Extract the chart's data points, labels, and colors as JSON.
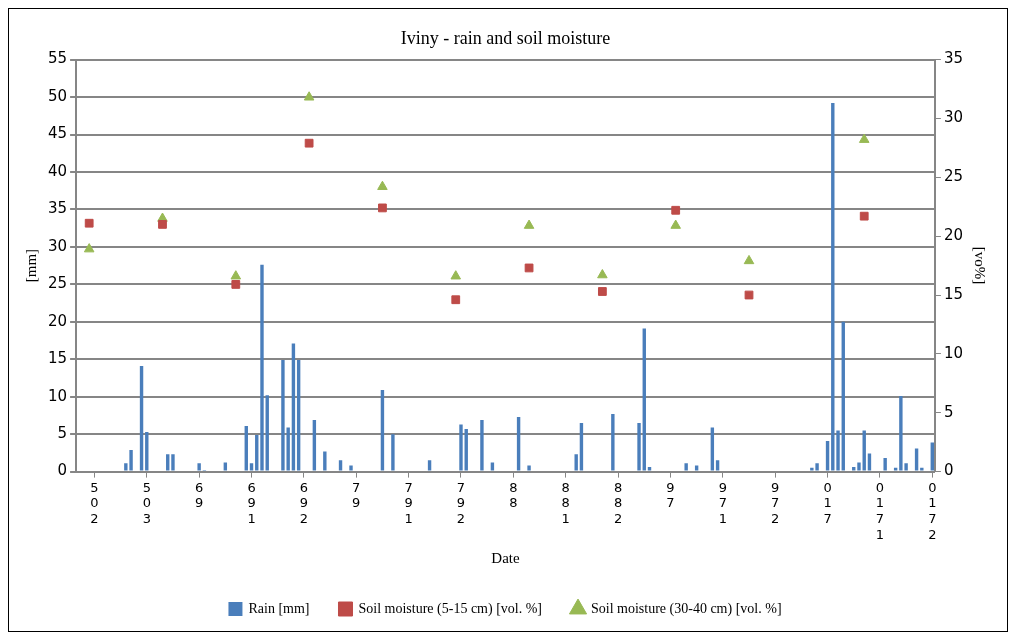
{
  "chart_data": {
    "type": "bar",
    "title": "Iviny - rain and soil moisture",
    "xlabel": "Date",
    "ylabel": "[mm]",
    "y2label": "[vo%]",
    "categories": [
      null,
      null,
      null,
      "502",
      null,
      null,
      null,
      null,
      null,
      null,
      null,
      null,
      null,
      "503",
      null,
      null,
      null,
      null,
      null,
      null,
      null,
      null,
      null,
      "69",
      null,
      null,
      null,
      null,
      null,
      null,
      null,
      null,
      null,
      "691",
      null,
      null,
      null,
      null,
      null,
      null,
      null,
      null,
      null,
      "692",
      null,
      null,
      null,
      null,
      null,
      null,
      null,
      null,
      null,
      "79",
      null,
      null,
      null,
      null,
      null,
      null,
      null,
      null,
      null,
      "791",
      null,
      null,
      null,
      null,
      null,
      null,
      null,
      null,
      null,
      "792",
      null,
      null,
      null,
      null,
      null,
      null,
      null,
      null,
      null,
      "88",
      null,
      null,
      null,
      null,
      null,
      null,
      null,
      null,
      null,
      "881",
      null,
      null,
      null,
      null,
      null,
      null,
      null,
      null,
      null,
      "882",
      null,
      null,
      null,
      null,
      null,
      null,
      null,
      null,
      null,
      "97",
      null,
      null,
      null,
      null,
      null,
      null,
      null,
      null,
      null,
      "971",
      null,
      null,
      null,
      null,
      null,
      null,
      null,
      null,
      null,
      "972",
      null,
      null,
      null,
      null,
      null,
      null,
      null,
      null,
      null,
      "017",
      null,
      null,
      null,
      null,
      null,
      null,
      null,
      null,
      null,
      "0171",
      null,
      null,
      null,
      null,
      null,
      null,
      null,
      null,
      null,
      "0172"
    ],
    "ylim": [
      0,
      55
    ],
    "yticks": [
      0,
      5,
      10,
      15,
      20,
      25,
      30,
      35,
      40,
      45,
      50,
      55
    ],
    "y2lim": [
      0,
      35
    ],
    "y2ticks": [
      0,
      5,
      10,
      15,
      20,
      25,
      30,
      35
    ],
    "grid": "y",
    "legend": "bottom",
    "series": [
      {
        "name": "Rain [mm]",
        "color": "#4a7ebb",
        "values": [
          null,
          null,
          null,
          null,
          null,
          null,
          null,
          null,
          null,
          1.1,
          2.9,
          null,
          14.1,
          5.3,
          null,
          null,
          null,
          2.3,
          2.3,
          null,
          null,
          null,
          null,
          1.1,
          0.2,
          null,
          null,
          null,
          1.2,
          null,
          null,
          null,
          6.1,
          1.1,
          4.9,
          27.6,
          10.2,
          null,
          null,
          14.9,
          5.9,
          17.1,
          14.9,
          null,
          null,
          6.9,
          null,
          2.7,
          null,
          null,
          1.5,
          null,
          0.8,
          null,
          null,
          null,
          null,
          null,
          10.9,
          null,
          5.0,
          null,
          null,
          null,
          null,
          null,
          null,
          1.5,
          null,
          null,
          null,
          null,
          null,
          6.3,
          5.7,
          null,
          null,
          6.9,
          null,
          1.2,
          null,
          null,
          null,
          null,
          7.3,
          null,
          0.8,
          null,
          null,
          null,
          null,
          null,
          null,
          null,
          null,
          2.3,
          6.5,
          null,
          null,
          null,
          null,
          null,
          7.7,
          null,
          null,
          null,
          null,
          6.5,
          19.1,
          0.6,
          null,
          null,
          null,
          null,
          null,
          null,
          1.1,
          null,
          0.8,
          null,
          null,
          5.9,
          1.5,
          null,
          null,
          null,
          null,
          null,
          null,
          null,
          null,
          null,
          null,
          null,
          null,
          null,
          null,
          null,
          null,
          null,
          0.5,
          1.1,
          null,
          4.1,
          49.2,
          5.5,
          20.0,
          null,
          0.6,
          1.2,
          5.5,
          2.4,
          null,
          null,
          1.8,
          null,
          0.5,
          10.1,
          1.1,
          null,
          3.1,
          0.5,
          null,
          3.9
        ]
      },
      {
        "name": "Soil moisture (5-15 cm) [vol. %]",
        "type": "scatter",
        "axis": "y2",
        "marker": "square",
        "color": "#be4b48",
        "values": [
          null,
          null,
          21.1,
          null,
          null,
          null,
          null,
          null,
          null,
          null,
          null,
          null,
          null,
          null,
          null,
          null,
          21.0,
          null,
          null,
          null,
          null,
          null,
          null,
          null,
          null,
          null,
          null,
          null,
          null,
          null,
          15.9,
          null,
          null,
          null,
          null,
          null,
          null,
          null,
          null,
          null,
          null,
          null,
          null,
          null,
          27.9,
          null,
          null,
          null,
          null,
          null,
          null,
          null,
          null,
          null,
          null,
          null,
          null,
          null,
          22.4,
          null,
          null,
          null,
          null,
          null,
          null,
          null,
          null,
          null,
          null,
          null,
          null,
          null,
          14.6,
          null,
          null,
          null,
          null,
          null,
          null,
          null,
          null,
          null,
          null,
          null,
          null,
          null,
          17.3,
          null,
          null,
          null,
          null,
          null,
          null,
          null,
          null,
          null,
          null,
          null,
          null,
          null,
          15.3,
          null,
          null,
          null,
          null,
          null,
          null,
          null,
          null,
          null,
          null,
          null,
          null,
          null,
          22.2,
          null,
          null,
          null,
          null,
          null,
          null,
          null,
          null,
          null,
          null,
          null,
          null,
          null,
          15.0,
          null,
          null,
          null,
          null,
          null,
          null,
          null,
          null,
          null,
          null,
          null,
          null,
          null,
          null,
          null,
          null,
          null,
          null,
          null,
          null,
          null,
          21.7,
          null,
          null,
          null,
          null,
          null,
          null,
          null,
          null,
          null,
          null,
          null,
          null,
          null
        ]
      },
      {
        "name": "Soil moisture (30-40 cm) [vol. %]",
        "type": "scatter",
        "axis": "y2",
        "marker": "triangle",
        "color": "#98b954",
        "values": [
          null,
          null,
          18.9,
          null,
          null,
          null,
          null,
          null,
          null,
          null,
          null,
          null,
          null,
          null,
          null,
          null,
          21.5,
          null,
          null,
          null,
          null,
          null,
          null,
          null,
          null,
          null,
          null,
          null,
          null,
          null,
          16.6,
          null,
          null,
          null,
          null,
          null,
          null,
          null,
          null,
          null,
          null,
          null,
          null,
          null,
          31.8,
          null,
          null,
          null,
          null,
          null,
          null,
          null,
          null,
          null,
          null,
          null,
          null,
          null,
          24.2,
          null,
          null,
          null,
          null,
          null,
          null,
          null,
          null,
          null,
          null,
          null,
          null,
          null,
          16.6,
          null,
          null,
          null,
          null,
          null,
          null,
          null,
          null,
          null,
          null,
          null,
          null,
          null,
          20.9,
          null,
          null,
          null,
          null,
          null,
          null,
          null,
          null,
          null,
          null,
          null,
          null,
          null,
          16.7,
          null,
          null,
          null,
          null,
          null,
          null,
          null,
          null,
          null,
          null,
          null,
          null,
          null,
          20.9,
          null,
          null,
          null,
          null,
          null,
          null,
          null,
          null,
          null,
          null,
          null,
          null,
          null,
          17.9,
          null,
          null,
          null,
          null,
          null,
          null,
          null,
          null,
          null,
          null,
          null,
          null,
          null,
          null,
          null,
          null,
          null,
          null,
          null,
          null,
          null,
          28.2,
          null,
          null,
          null,
          null,
          null,
          null,
          null,
          null,
          null,
          null,
          null,
          null,
          null
        ]
      }
    ]
  }
}
